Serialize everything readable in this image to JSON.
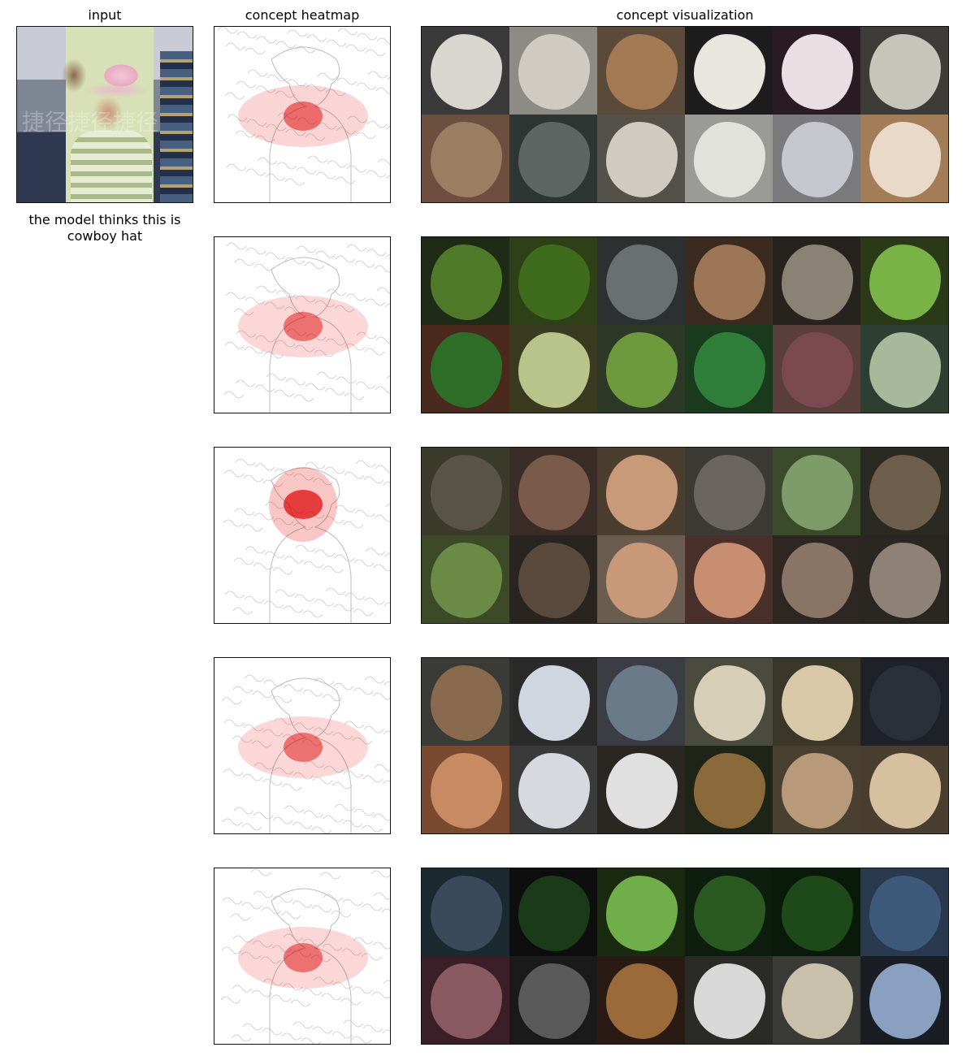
{
  "headers": {
    "input": "input",
    "heatmap": "concept heatmap",
    "visualization": "concept visualization"
  },
  "caption": "the model thinks this is cowboy hat",
  "watermark": "捷径捷径捷径",
  "rows": [
    {
      "heat_intensity": 0.55,
      "tiles": [
        "#3a3a3a",
        "#8d8b86",
        "#5b4a3a",
        "#1d1d1d",
        "#2a1b22",
        "#3d3c38",
        "#6c4f3e",
        "#2e3634",
        "#54504a",
        "#9a9a96",
        "#7a7a7d",
        "#a27d58"
      ],
      "blobs": [
        "#d9d6cf",
        "#cfcbc2",
        "#a47a55",
        "#e8e6df",
        "#e9dfe2",
        "#c7c4bc",
        "#9a7e62",
        "#5e6562",
        "#d0cbc0",
        "#e2e2dd",
        "#c6c6cf",
        "#e8d9c8"
      ]
    },
    {
      "heat_intensity": 0.5,
      "tiles": [
        "#1f2a17",
        "#2d4018",
        "#2d3030",
        "#3b2a1f",
        "#26221e",
        "#2a3a18",
        "#4a2a1c",
        "#3a3a20",
        "#2d3826",
        "#1a3a1e",
        "#5a3f3c",
        "#2d3f33"
      ],
      "blobs": [
        "#4f7a2a",
        "#3f6b1c",
        "#6a6f70",
        "#9c7656",
        "#8b8276",
        "#79b245",
        "#2f6e28",
        "#b8c48a",
        "#6d9a3c",
        "#2f7e3a",
        "#7a4a50",
        "#a8b89a"
      ]
    },
    {
      "heat_intensity": 0.9,
      "tiles": [
        "#3a3b28",
        "#3a2c26",
        "#4c3e2e",
        "#3b3a35",
        "#3a4a2a",
        "#2b2a22",
        "#3c4a28",
        "#2a2420",
        "#6b5c50",
        "#4a302a",
        "#2e2622",
        "#2a2622"
      ],
      "blobs": [
        "#5a5448",
        "#7a5a4a",
        "#c89a7a",
        "#6a6560",
        "#7e9c6a",
        "#6e5e4c",
        "#6a8a46",
        "#5a4a3e",
        "#c89878",
        "#c88e72",
        "#8a7466",
        "#8e8278"
      ]
    },
    {
      "heat_intensity": 0.5,
      "tiles": [
        "#3a3a36",
        "#2a2a2a",
        "#3a3e44",
        "#4a4a3e",
        "#3a3628",
        "#1e2228",
        "#7a4a30",
        "#3a3a3a",
        "#2a2622",
        "#1e2418",
        "#4a4032",
        "#4a3e30"
      ],
      "blobs": [
        "#8a6a4e",
        "#cfd6e0",
        "#6a7a88",
        "#d6ceb6",
        "#d8c8a8",
        "#2a3038",
        "#c88a62",
        "#d6dade",
        "#e0e0e0",
        "#8a6a3a",
        "#b89a7a",
        "#d6c0a0"
      ]
    },
    {
      "heat_intensity": 0.5,
      "tiles": [
        "#1a2a30",
        "#0e0e0e",
        "#1a2a10",
        "#0e1e0e",
        "#0a1a0a",
        "#2a3a4e",
        "#3a1e28",
        "#1a1a1a",
        "#2a1a14",
        "#2a2a26",
        "#3a3a36",
        "#1a1e24"
      ],
      "blobs": [
        "#3a4a5a",
        "#1a3a1a",
        "#6fae48",
        "#2a5a22",
        "#1e4a1a",
        "#3e5a7a",
        "#8a5a62",
        "#5a5a5a",
        "#9a6a3a",
        "#d8d8d8",
        "#c8c0aa",
        "#8aa0c0"
      ]
    }
  ]
}
